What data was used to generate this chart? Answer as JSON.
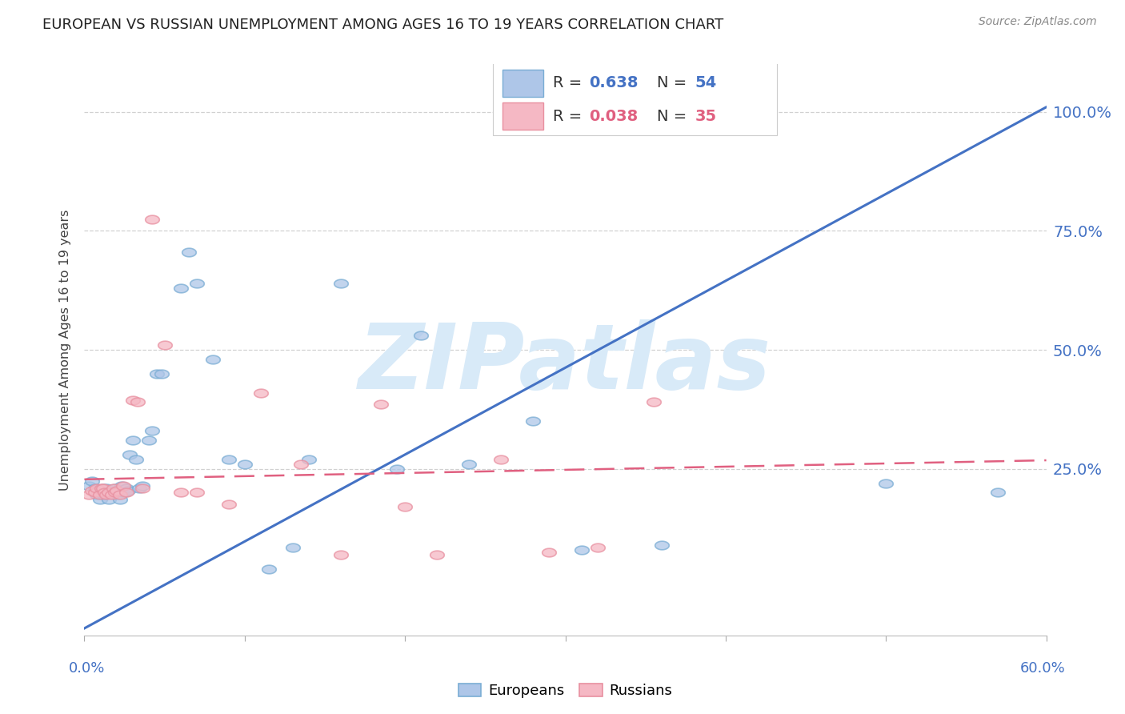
{
  "title": "EUROPEAN VS RUSSIAN UNEMPLOYMENT AMONG AGES 16 TO 19 YEARS CORRELATION CHART",
  "source": "Source: ZipAtlas.com",
  "ylabel": "Unemployment Among Ages 16 to 19 years",
  "ytick_labels": [
    "25.0%",
    "50.0%",
    "75.0%",
    "100.0%"
  ],
  "ytick_values": [
    0.25,
    0.5,
    0.75,
    1.0
  ],
  "xmin": 0.0,
  "xmax": 0.6,
  "ymin": -0.1,
  "ymax": 1.1,
  "european_color": "#aec6e8",
  "european_edge": "#7aadd4",
  "russian_color": "#f5b8c4",
  "russian_edge": "#e890a0",
  "european_line_color": "#4472c4",
  "russian_line_color": "#e06080",
  "watermark": "ZIPatlas",
  "watermark_color": "#d8eaf8",
  "grid_color": "#cccccc",
  "axis_label_color": "#4472c4",
  "title_color": "#222222",
  "source_color": "#888888",
  "ylabel_color": "#444444",
  "eu_R_text": "R = ",
  "eu_R_val": "0.638",
  "eu_N_text": "N = ",
  "eu_N_val": "54",
  "ru_R_text": "R = ",
  "ru_R_val": "0.038",
  "ru_N_text": "N = ",
  "ru_N_val": "35",
  "eu_label": "Europeans",
  "ru_label": "Russians",
  "european_x": [
    0.003,
    0.005,
    0.007,
    0.008,
    0.009,
    0.01,
    0.01,
    0.011,
    0.012,
    0.012,
    0.013,
    0.014,
    0.015,
    0.015,
    0.016,
    0.017,
    0.018,
    0.019,
    0.02,
    0.02,
    0.021,
    0.022,
    0.023,
    0.024,
    0.025,
    0.026,
    0.027,
    0.028,
    0.03,
    0.032,
    0.034,
    0.036,
    0.04,
    0.042,
    0.045,
    0.048,
    0.06,
    0.065,
    0.07,
    0.08,
    0.09,
    0.1,
    0.115,
    0.13,
    0.14,
    0.16,
    0.195,
    0.21,
    0.24,
    0.28,
    0.31,
    0.36,
    0.5,
    0.57
  ],
  "european_y": [
    0.215,
    0.225,
    0.21,
    0.195,
    0.2,
    0.205,
    0.185,
    0.2,
    0.195,
    0.21,
    0.195,
    0.21,
    0.2,
    0.185,
    0.2,
    0.2,
    0.205,
    0.21,
    0.195,
    0.2,
    0.2,
    0.185,
    0.215,
    0.2,
    0.2,
    0.21,
    0.205,
    0.28,
    0.31,
    0.27,
    0.21,
    0.215,
    0.31,
    0.33,
    0.45,
    0.45,
    0.63,
    0.705,
    0.64,
    0.48,
    0.27,
    0.26,
    0.04,
    0.085,
    0.27,
    0.64,
    0.25,
    0.53,
    0.26,
    0.35,
    0.08,
    0.09,
    0.22,
    0.2
  ],
  "russian_x": [
    0.003,
    0.005,
    0.007,
    0.008,
    0.01,
    0.011,
    0.012,
    0.013,
    0.014,
    0.015,
    0.017,
    0.018,
    0.019,
    0.02,
    0.022,
    0.024,
    0.026,
    0.03,
    0.033,
    0.036,
    0.042,
    0.05,
    0.06,
    0.07,
    0.09,
    0.11,
    0.135,
    0.16,
    0.185,
    0.2,
    0.22,
    0.26,
    0.29,
    0.32,
    0.355
  ],
  "russian_y": [
    0.195,
    0.205,
    0.2,
    0.21,
    0.195,
    0.21,
    0.21,
    0.2,
    0.195,
    0.2,
    0.195,
    0.21,
    0.2,
    0.205,
    0.195,
    0.215,
    0.2,
    0.395,
    0.39,
    0.21,
    0.775,
    0.51,
    0.2,
    0.2,
    0.175,
    0.41,
    0.26,
    0.07,
    0.385,
    0.17,
    0.07,
    0.27,
    0.075,
    0.085,
    0.39
  ],
  "eu_line_x0": 0.0,
  "eu_line_y0": -0.085,
  "eu_line_x1": 0.6,
  "eu_line_y1": 1.01,
  "ru_line_x0": 0.0,
  "ru_line_y0": 0.228,
  "ru_line_x1": 0.6,
  "ru_line_y1": 0.268
}
